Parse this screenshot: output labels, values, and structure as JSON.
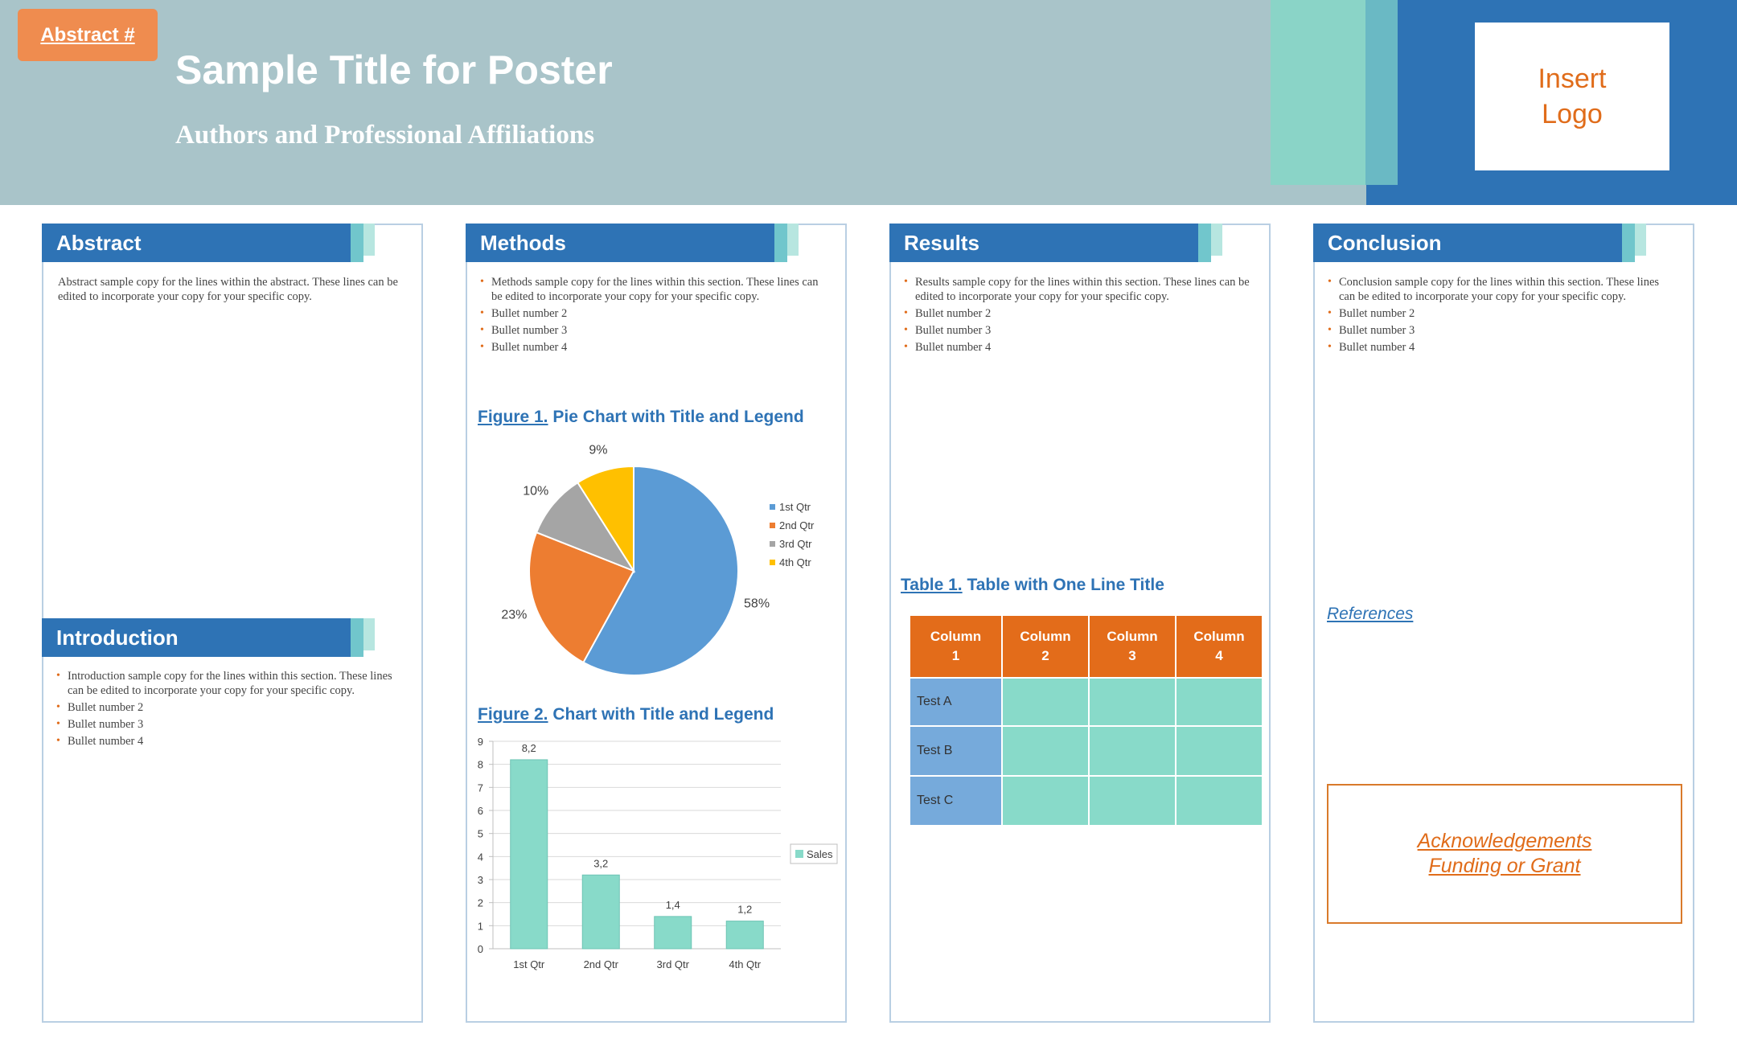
{
  "header": {
    "abstract_tag": "Abstract #",
    "title": "Sample Title for Poster",
    "authors": "Authors and Professional Affiliations",
    "logo_text": "Insert\nLogo"
  },
  "abstract": {
    "heading": "Abstract",
    "text": "Abstract sample copy for the lines within the abstract. These lines can be edited to incorporate your copy for your specific copy."
  },
  "introduction": {
    "heading": "Introduction",
    "bullets": [
      "Introduction sample copy for the lines within this section. These lines can be edited to incorporate your copy for your specific copy.",
      "Bullet number 2",
      "Bullet number 3",
      "Bullet number 4"
    ]
  },
  "methods": {
    "heading": "Methods",
    "bullets": [
      "Methods sample copy for the lines within this section. These lines can be edited to incorporate your copy for your specific copy.",
      "Bullet number 2",
      "Bullet number 3",
      "Bullet number 4"
    ],
    "figure1_num": "Figure 1.",
    "figure1_title": "Pie Chart with Title and Legend",
    "figure2_num": "Figure 2.",
    "figure2_title": "Chart with Title and Legend"
  },
  "results": {
    "heading": "Results",
    "bullets": [
      "Results sample copy for the lines within this section. These lines can be edited to incorporate your copy for your specific copy.",
      "Bullet number 2",
      "Bullet number 3",
      "Bullet number 4"
    ],
    "table_num": "Table 1.",
    "table_title": "Table with One Line Title",
    "table": {
      "columns": [
        "Column\n1",
        "Column\n2",
        "Column\n3",
        "Column\n4"
      ],
      "rows": [
        "Test A",
        "Test B",
        "Test C"
      ]
    }
  },
  "conclusion": {
    "heading": "Conclusion",
    "bullets": [
      "Conclusion sample copy for the lines within this section. These lines can be edited to incorporate your copy for your specific copy.",
      "Bullet number 2",
      "Bullet number 3",
      "Bullet number 4"
    ],
    "references": "References",
    "ack_line1": "Acknowledgements",
    "ack_line2": "Funding or Grant"
  },
  "colors": {
    "blue": "#2e73b5",
    "orange": "#e36c1a",
    "teal": "#88dac9",
    "header_bg": "#a9c4c9"
  },
  "chart_data": [
    {
      "type": "pie",
      "title": "",
      "categories": [
        "1st Qtr",
        "2nd Qtr",
        "3rd Qtr",
        "4th Qtr"
      ],
      "values": [
        58,
        23,
        10,
        9
      ],
      "data_labels": [
        "58%",
        "23%",
        "10%",
        "9%"
      ],
      "colors": [
        "#5b9bd5",
        "#ed7d31",
        "#a5a5a5",
        "#ffc000"
      ],
      "legend": "right"
    },
    {
      "type": "bar",
      "title": "",
      "categories": [
        "1st Qtr",
        "2nd Qtr",
        "3rd Qtr",
        "4th Qtr"
      ],
      "series": [
        {
          "name": "Sales",
          "values": [
            8.2,
            3.2,
            1.4,
            1.2
          ]
        }
      ],
      "data_labels": [
        "8,2",
        "3,2",
        "1,4",
        "1,2"
      ],
      "yticks": [
        "0",
        "1",
        "2",
        "3",
        "4",
        "5",
        "6",
        "7",
        "8",
        "9"
      ],
      "ylim": [
        0,
        9
      ],
      "grid": true,
      "legend": "right",
      "color": "#88dac9"
    }
  ]
}
